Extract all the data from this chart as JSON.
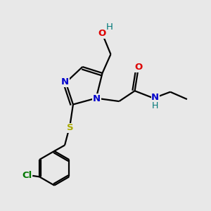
{
  "background_color": "#e8e8e8",
  "atom_colors": {
    "C": "#000000",
    "N": "#0000cc",
    "O": "#dd0000",
    "S": "#aaaa00",
    "Cl": "#007700",
    "H": "#007777"
  },
  "bond_color": "#000000",
  "bond_lw": 1.6,
  "figsize": [
    3.0,
    3.0
  ],
  "dpi": 100
}
